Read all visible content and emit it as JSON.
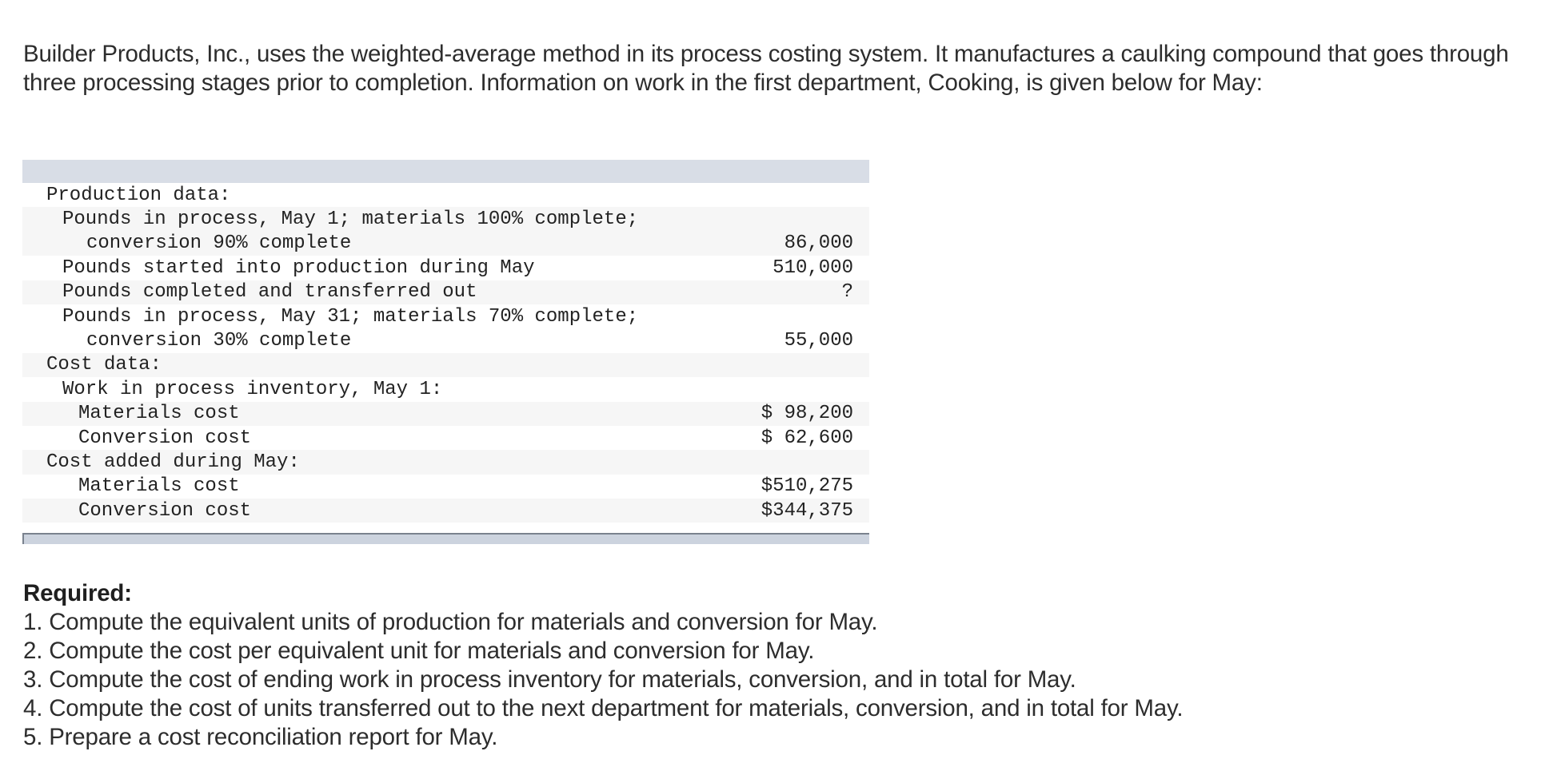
{
  "intro": "Builder Products, Inc., uses the weighted-average method in its process costing system. It manufactures a caulking compound that goes through three processing stages prior to completion. Information on work in the first department, Cooking, is given below for May:",
  "table": {
    "rows": [
      {
        "label": "Production data:",
        "value": "",
        "indent": 0,
        "shade": false
      },
      {
        "label": "Pounds in process, May 1; materials 100% complete;",
        "value": "",
        "indent": 1,
        "shade": true
      },
      {
        "label": "conversion 90% complete",
        "value": "86,000",
        "indent": 3,
        "shade": true
      },
      {
        "label": "Pounds started into production during May",
        "value": "510,000",
        "indent": 1,
        "shade": false
      },
      {
        "label": "Pounds completed and transferred out",
        "value": "?",
        "indent": 1,
        "shade": true
      },
      {
        "label": "Pounds in process, May 31; materials 70% complete;",
        "value": "",
        "indent": 1,
        "shade": false
      },
      {
        "label": "conversion 30% complete",
        "value": "55,000",
        "indent": 3,
        "shade": false
      },
      {
        "label": "Cost data:",
        "value": "",
        "indent": 0,
        "shade": true
      },
      {
        "label": "Work in process inventory, May 1:",
        "value": "",
        "indent": 1,
        "shade": false
      },
      {
        "label": "Materials cost",
        "value": "$ 98,200",
        "indent": 2,
        "shade": true
      },
      {
        "label": "Conversion cost",
        "value": "$ 62,600",
        "indent": 2,
        "shade": false
      },
      {
        "label": "Cost added during May:",
        "value": "",
        "indent": 0,
        "shade": true
      },
      {
        "label": "Materials cost",
        "value": "$510,275",
        "indent": 2,
        "shade": false
      },
      {
        "label": "Conversion cost",
        "value": "$344,375",
        "indent": 2,
        "shade": true
      }
    ]
  },
  "required": {
    "title": "Required:",
    "items": [
      "1. Compute the equivalent units of production for materials and conversion for May.",
      "2. Compute the cost per equivalent unit for materials and conversion for May.",
      "3. Compute the cost of ending work in process inventory for materials, conversion, and in total for May.",
      "4. Compute the cost of units transferred out to the next department for materials, conversion, and in total for May.",
      "5. Prepare a cost reconciliation report for May."
    ]
  }
}
